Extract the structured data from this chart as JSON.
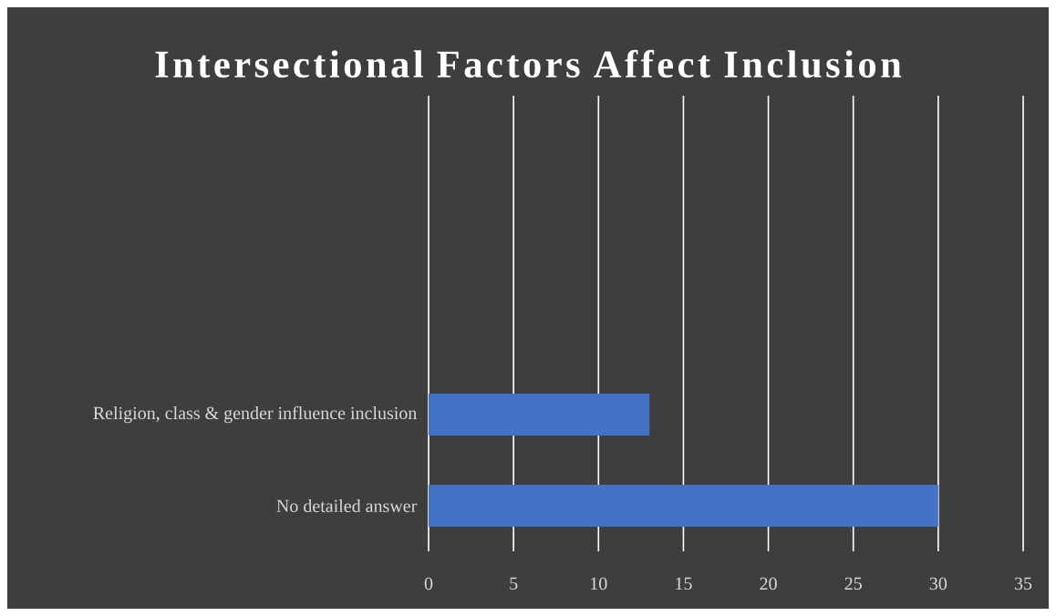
{
  "chart_data": {
    "type": "bar",
    "orientation": "horizontal",
    "title": "Intersectional Factors Affect Inclusion",
    "categories": [
      null,
      null,
      null,
      "Religion, class & gender influence inclusion",
      "No detailed answer"
    ],
    "values": [
      null,
      null,
      null,
      13,
      30
    ],
    "color": "#4472c4",
    "xlim": [
      0,
      35
    ],
    "xticks": [
      0,
      5,
      10,
      15,
      20,
      25,
      30,
      35
    ],
    "grid": "x"
  }
}
